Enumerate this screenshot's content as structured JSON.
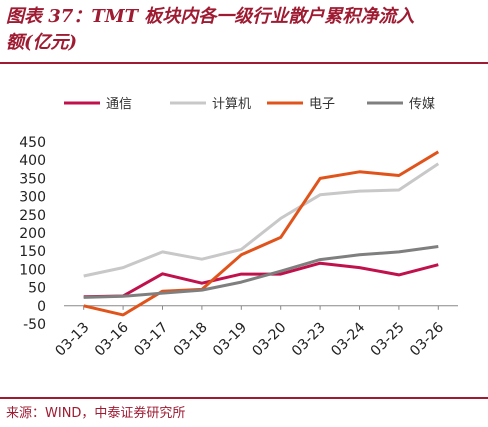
{
  "header": {
    "title_line1": "图表 37：TMT 板块内各一级行业散户累积净流入",
    "title_line2": "额(亿元)"
  },
  "footer": {
    "source": "来源：WIND，中泰证券研究所"
  },
  "colors": {
    "accent": "#9e1b32",
    "series": [
      "#c0114d",
      "#c8c8c8",
      "#e0541b",
      "#7f7f7f"
    ]
  },
  "chart_data": {
    "type": "line",
    "categories": [
      "03-13",
      "03-16",
      "03-17",
      "03-18",
      "03-19",
      "03-20",
      "03-23",
      "03-24",
      "03-25",
      "03-26"
    ],
    "series": [
      {
        "name": "通信",
        "values": [
          25,
          27,
          88,
          62,
          87,
          87,
          117,
          105,
          85,
          113
        ]
      },
      {
        "name": "计算机",
        "values": [
          82,
          105,
          148,
          128,
          155,
          240,
          305,
          315,
          318,
          390
        ]
      },
      {
        "name": "电子",
        "values": [
          0,
          -25,
          40,
          45,
          140,
          188,
          350,
          368,
          358,
          423
        ]
      },
      {
        "name": "传媒",
        "values": [
          23,
          26,
          35,
          43,
          65,
          95,
          127,
          140,
          148,
          163
        ]
      }
    ],
    "yticks": [
      "450",
      "400",
      "350",
      "300",
      "250",
      "200",
      "150",
      "100",
      "50",
      "0",
      "-50"
    ],
    "ylim": [
      -50,
      450
    ],
    "legend_position": "top",
    "grid": false
  }
}
